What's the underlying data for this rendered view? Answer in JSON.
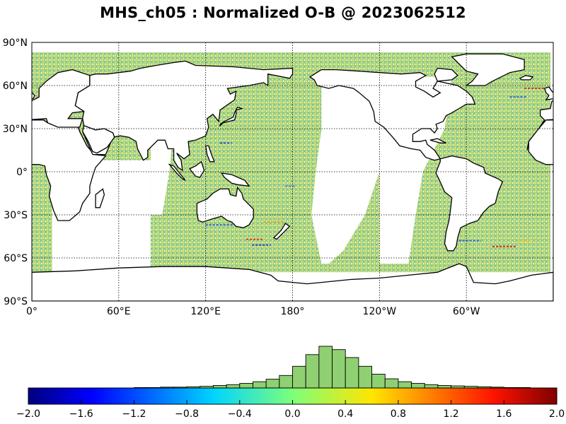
{
  "title": "MHS_ch05 : Normalized O-B @ 2023062512",
  "map": {
    "lat_labels": [
      "90°N",
      "60°N",
      "30°N",
      "0°",
      "30°S",
      "60°S",
      "90°S"
    ],
    "lat_values": [
      90,
      60,
      30,
      0,
      -30,
      -60,
      -90
    ],
    "lon_labels": [
      "0°",
      "60°E",
      "120°E",
      "180°",
      "120°W",
      "60°W"
    ],
    "lon_values": [
      0,
      60,
      120,
      180,
      240,
      300
    ],
    "lon_range": [
      0,
      360
    ],
    "lat_range": [
      -90,
      90
    ],
    "grid": "dotted",
    "colors": {
      "coast": "#000000",
      "grid": "#000000"
    }
  },
  "chart_data": {
    "type": "histogram",
    "colormap": "jet",
    "xlim": [
      -2.0,
      2.0
    ],
    "ticks": [
      -2.0,
      -1.6,
      -1.2,
      -0.8,
      -0.4,
      0.0,
      0.4,
      0.8,
      1.2,
      1.6,
      2.0
    ],
    "tick_labels": [
      "−2.0",
      "−1.6",
      "−1.2",
      "−0.8",
      "−0.4",
      "0.0",
      "0.4",
      "0.8",
      "1.2",
      "1.6",
      "2.0"
    ],
    "bin_width": 0.1,
    "counts": [
      0,
      0,
      0,
      0,
      0,
      0,
      0,
      0,
      1,
      1,
      2,
      2,
      3,
      4,
      6,
      8,
      11,
      15,
      21,
      30,
      52,
      80,
      100,
      92,
      73,
      52,
      33,
      22,
      15,
      11,
      8,
      6,
      5,
      4,
      3,
      2,
      1,
      1,
      0,
      0
    ]
  }
}
